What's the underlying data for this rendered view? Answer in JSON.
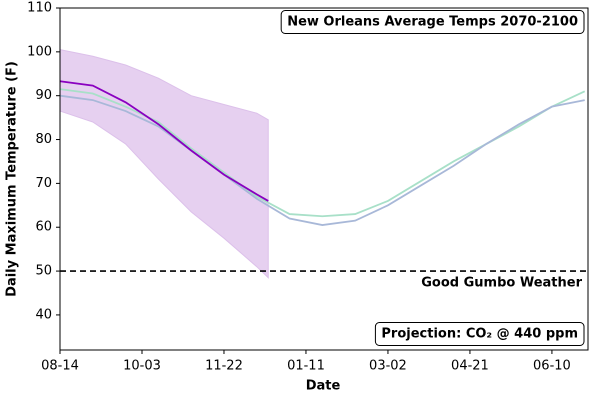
{
  "chart_data": {
    "type": "line",
    "title": "New Orleans Average Temps 2070-2100",
    "annotation": "Projection: CO₂ @ 440 ppm",
    "x_label": "Date",
    "y_label": "Daily Maximum Temperature (F)",
    "xlim": [
      0,
      322
    ],
    "xticks": [
      {
        "value": 0,
        "label": "08-14"
      },
      {
        "value": 50,
        "label": "10-03"
      },
      {
        "value": 100,
        "label": "11-22"
      },
      {
        "value": 150,
        "label": "01-11"
      },
      {
        "value": 200,
        "label": "03-02"
      },
      {
        "value": 250,
        "label": "04-21"
      },
      {
        "value": 300,
        "label": "06-10"
      }
    ],
    "ylim": [
      32,
      110
    ],
    "yticks": [
      40,
      50,
      60,
      70,
      80,
      90,
      100,
      110
    ],
    "reference_line": {
      "value": 50,
      "label": "Good Gumbo Weather"
    },
    "band": {
      "color": "#e6d0f0",
      "x": [
        0,
        20,
        40,
        60,
        80,
        100,
        120,
        127
      ],
      "upper": [
        100.5,
        99,
        97,
        94,
        90,
        88,
        86,
        84.5
      ],
      "lower": [
        86.5,
        84,
        79,
        71,
        63.5,
        57.5,
        51,
        48.5
      ]
    },
    "series": [
      {
        "color": "#a8e0c8",
        "x": [
          0,
          20,
          40,
          60,
          80,
          100,
          120,
          140,
          160,
          180,
          200,
          220,
          240,
          260,
          280,
          300,
          320
        ],
        "values": [
          91.5,
          90.5,
          87.5,
          84,
          78,
          72.5,
          67,
          63,
          62.5,
          63,
          66,
          70.5,
          75,
          79,
          83,
          87.5,
          91
        ]
      },
      {
        "color": "#a8b8d8",
        "x": [
          0,
          20,
          40,
          60,
          80,
          100,
          120,
          140,
          160,
          180,
          200,
          220,
          240,
          260,
          280,
          300,
          320
        ],
        "values": [
          90,
          89,
          86.5,
          83,
          77.5,
          72,
          66.5,
          62,
          60.5,
          61.5,
          65,
          69.5,
          74,
          79,
          83.5,
          87.5,
          89
        ]
      },
      {
        "color": "#8a00c0",
        "x": [
          0,
          20,
          40,
          60,
          80,
          100,
          120,
          127
        ],
        "values": [
          93.3,
          92.3,
          88.5,
          83.5,
          77.5,
          72,
          67.5,
          66
        ]
      }
    ]
  }
}
